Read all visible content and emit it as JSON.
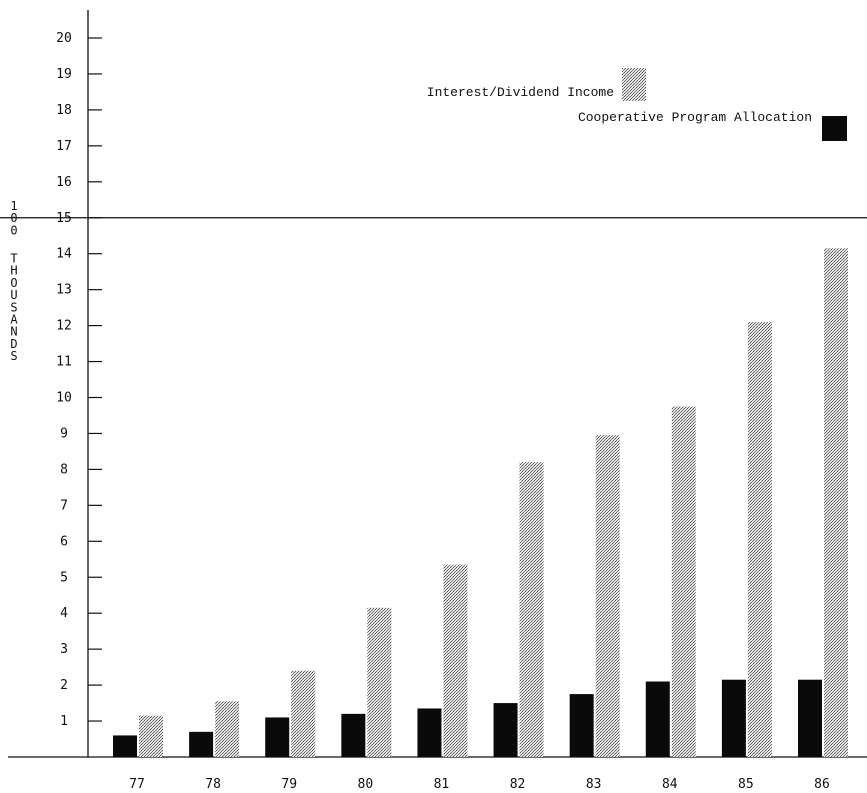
{
  "chart_data": {
    "type": "bar",
    "ylabel": "100 THOUSANDS",
    "ylim": [
      0,
      20
    ],
    "yticks": [
      "1",
      "2",
      "3",
      "4",
      "5",
      "6",
      "7",
      "8",
      "9",
      "10",
      "11",
      "12",
      "13",
      "14",
      "15",
      "16",
      "17",
      "18",
      "19",
      "20"
    ],
    "reference_line": 15,
    "categories": [
      "77",
      "78",
      "79",
      "80",
      "81",
      "82",
      "83",
      "84",
      "85",
      "86"
    ],
    "series": [
      {
        "name": "Cooperative Program Allocation",
        "color": "#0a0a0a",
        "pattern": "solid",
        "values": [
          0.6,
          0.7,
          1.1,
          1.2,
          1.35,
          1.5,
          1.75,
          2.1,
          2.15,
          2.15
        ]
      },
      {
        "name": "Interest/Dividend Income",
        "color": "#9a9a9a",
        "pattern": "stipple",
        "values": [
          1.15,
          1.55,
          2.4,
          4.15,
          5.35,
          8.2,
          8.95,
          9.75,
          12.1,
          14.15
        ]
      }
    ],
    "legend_position": "top-right",
    "grid": false
  }
}
